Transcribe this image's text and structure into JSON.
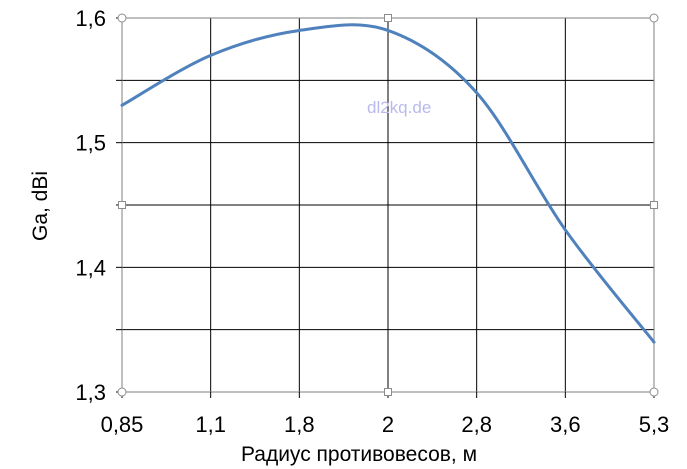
{
  "chart_data": {
    "type": "line",
    "title": "",
    "xlabel": "Радиус  противовесов, м",
    "ylabel": "Ga, dBi",
    "categories": [
      "0,85",
      "1,1",
      "1,8",
      "2",
      "2,8",
      "3,6",
      "5,3"
    ],
    "yticks": [
      "1,3",
      "1,4",
      "1,5",
      "1,6"
    ],
    "ylim": [
      1.3,
      1.6
    ],
    "grid": true,
    "legend": "none",
    "watermark": "dl2kq.de",
    "series": [
      {
        "color": "#4f81bd",
        "values": [
          1.53,
          1.57,
          1.59,
          1.59,
          1.54,
          1.43,
          1.34
        ]
      }
    ]
  }
}
